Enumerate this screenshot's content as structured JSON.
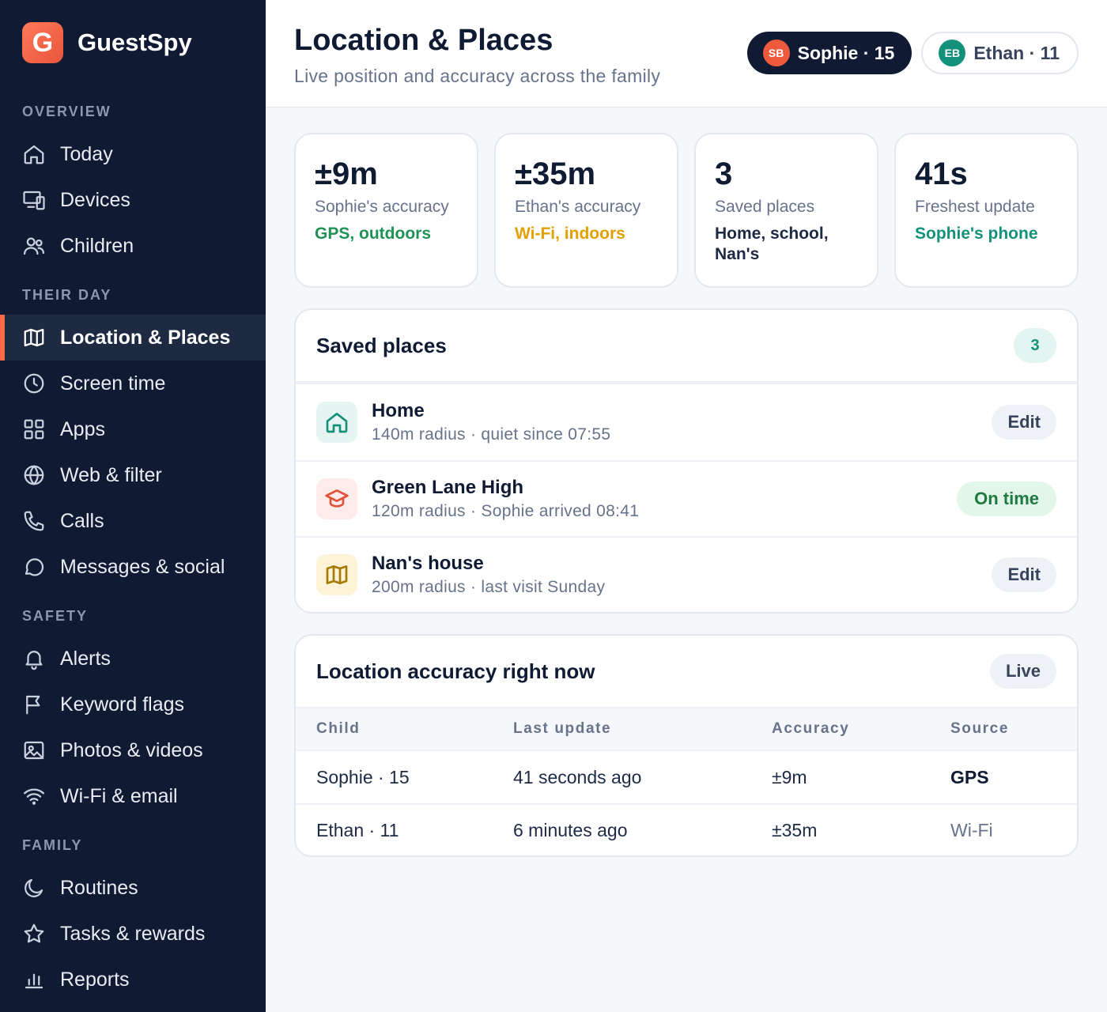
{
  "brand": {
    "logo_letter": "G",
    "name": "GuestSpy",
    "accent": "#ff6a4a"
  },
  "sidebar": {
    "sections": [
      {
        "title": "OVERVIEW",
        "items": [
          {
            "label": "Today",
            "icon": "home-icon"
          },
          {
            "label": "Devices",
            "icon": "devices-icon"
          },
          {
            "label": "Children",
            "icon": "users-icon"
          }
        ]
      },
      {
        "title": "THEIR DAY",
        "items": [
          {
            "label": "Location & Places",
            "icon": "map-icon",
            "active": true
          },
          {
            "label": "Screen time",
            "icon": "clock-icon"
          },
          {
            "label": "Apps",
            "icon": "grid-icon"
          },
          {
            "label": "Web & filter",
            "icon": "globe-icon"
          },
          {
            "label": "Calls",
            "icon": "phone-icon"
          },
          {
            "label": "Messages & social",
            "icon": "chat-icon"
          }
        ]
      },
      {
        "title": "SAFETY",
        "items": [
          {
            "label": "Alerts",
            "icon": "bell-icon"
          },
          {
            "label": "Keyword flags",
            "icon": "flag-icon"
          },
          {
            "label": "Photos & videos",
            "icon": "image-icon"
          },
          {
            "label": "Wi-Fi & email",
            "icon": "wifi-icon"
          }
        ]
      },
      {
        "title": "FAMILY",
        "items": [
          {
            "label": "Routines",
            "icon": "moon-icon"
          },
          {
            "label": "Tasks & rewards",
            "icon": "star-icon"
          },
          {
            "label": "Reports",
            "icon": "bar-chart-icon"
          }
        ]
      }
    ]
  },
  "header": {
    "title": "Location & Places",
    "subtitle": "Live position and accuracy across the family",
    "children": [
      {
        "initials": "SB",
        "label": "Sophie · 15",
        "selected": true
      },
      {
        "initials": "EB",
        "label": "Ethan · 11",
        "selected": false
      }
    ]
  },
  "stats": [
    {
      "value": "±9m",
      "label": "Sophie's accuracy",
      "note": "GPS, outdoors",
      "note_color": "#1f9256"
    },
    {
      "value": "±35m",
      "label": "Ethan's accuracy",
      "note": "Wi-Fi, indoors",
      "note_color": "#e0a100"
    },
    {
      "value": "3",
      "label": "Saved places",
      "note": "Home, school, Nan's",
      "note_color": "#1d2a44"
    },
    {
      "value": "41s",
      "label": "Freshest update",
      "note": "Sophie's phone",
      "note_color": "#14917a"
    }
  ],
  "saved_places": {
    "title": "Saved places",
    "count": "3",
    "items": [
      {
        "name": "Home",
        "desc": "140m radius · quiet since 07:55",
        "icon": "home-icon",
        "action": "Edit"
      },
      {
        "name": "Green Lane High",
        "desc": "120m radius · Sophie arrived 08:41",
        "icon": "graduation-cap-icon",
        "action": "On time"
      },
      {
        "name": "Nan's house",
        "desc": "200m radius · last visit Sunday",
        "icon": "map-icon",
        "action": "Edit"
      }
    ]
  },
  "accuracy": {
    "title": "Location accuracy right now",
    "badge": "Live",
    "columns": [
      "Child",
      "Last update",
      "Accuracy",
      "Source"
    ],
    "rows": [
      {
        "child": "Sophie · 15",
        "last_update": "41 seconds ago",
        "accuracy": "±9m",
        "source": "GPS"
      },
      {
        "child": "Ethan · 11",
        "last_update": "6 minutes ago",
        "accuracy": "±35m",
        "source": "Wi-Fi"
      }
    ]
  }
}
